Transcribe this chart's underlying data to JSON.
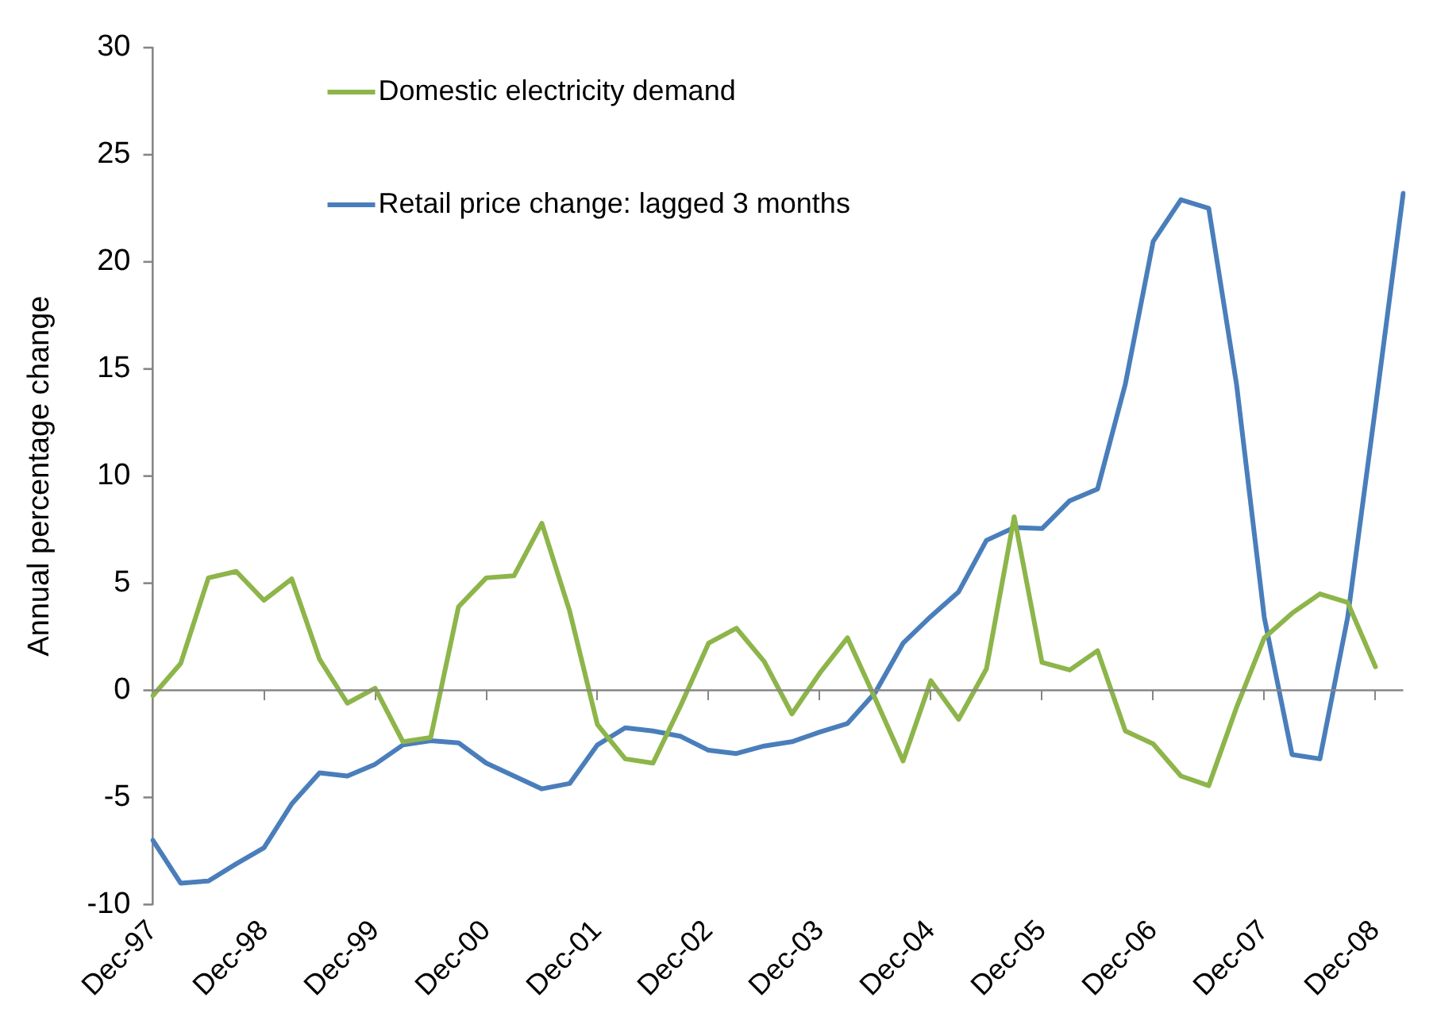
{
  "chart_data": {
    "type": "line",
    "ylabel": "Annual percentage change",
    "categories": [
      "Dec-97",
      null,
      null,
      null,
      "Dec-98",
      null,
      null,
      null,
      "Dec-99",
      null,
      null,
      null,
      "Dec-00",
      null,
      null,
      null,
      "Dec-01",
      null,
      null,
      null,
      "Dec-02",
      null,
      null,
      null,
      "Dec-03",
      null,
      null,
      null,
      "Dec-04",
      null,
      null,
      null,
      "Dec-05",
      null,
      null,
      null,
      "Dec-06",
      null,
      null,
      null,
      "Dec-07",
      null,
      null,
      null,
      "Dec-08",
      null
    ],
    "series": [
      {
        "name": "Domestic electricity demand",
        "color": "#8db54a",
        "values": [
          -0.25,
          1.25,
          5.25,
          5.55,
          4.2,
          5.2,
          1.45,
          -0.6,
          0.1,
          -2.4,
          -2.2,
          3.9,
          5.25,
          5.35,
          7.8,
          3.7,
          -1.6,
          -3.2,
          -3.4,
          -0.7,
          2.2,
          2.9,
          1.35,
          -1.1,
          0.8,
          2.45,
          -0.4,
          -3.3,
          0.45,
          -1.35,
          1.0,
          8.1,
          1.3,
          0.95,
          1.85,
          -1.9,
          -2.5,
          -4.0,
          -4.45,
          -0.8,
          2.45,
          3.6,
          4.5,
          4.1,
          1.1,
          null
        ]
      },
      {
        "name": "Retail price change: lagged 3 months",
        "color": "#4a7ebb",
        "values": [
          -7.0,
          -9.0,
          -8.9,
          -8.1,
          -7.35,
          -5.3,
          -3.85,
          -4.0,
          -3.45,
          -2.55,
          -2.35,
          -2.45,
          -3.4,
          -4.0,
          -4.6,
          -4.35,
          -2.55,
          -1.75,
          -1.9,
          -2.15,
          -2.8,
          -2.95,
          -2.6,
          -2.4,
          -1.95,
          -1.55,
          -0.1,
          2.2,
          3.45,
          4.6,
          7.0,
          7.6,
          7.55,
          8.85,
          9.4,
          14.3,
          20.95,
          22.9,
          22.5,
          14.3,
          3.4,
          -3.0,
          -3.2,
          3.4,
          13.2,
          23.2
        ]
      }
    ],
    "ref_lines": [
      {
        "axis": "y",
        "value": 0,
        "color": "#868686"
      }
    ],
    "ylim": [
      -10,
      30
    ],
    "yticks": [
      -10,
      -5,
      0,
      5,
      10,
      15,
      20,
      25,
      30
    ],
    "grid": false,
    "legend": "top left",
    "marker": "none",
    "line_style": "solid"
  }
}
